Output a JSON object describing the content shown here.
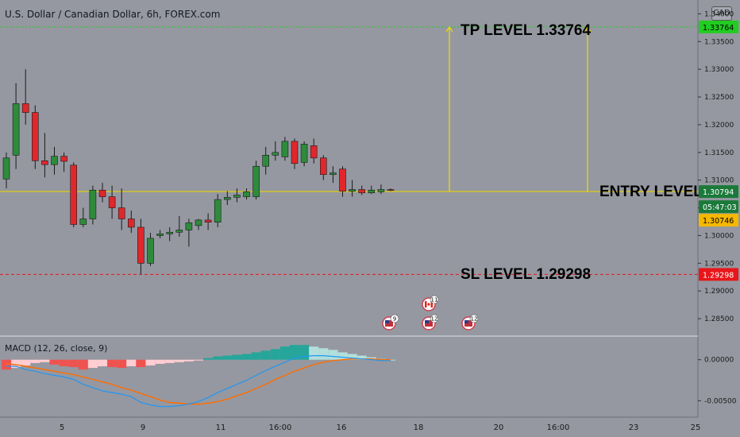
{
  "chart_data": {
    "type": "candlestick",
    "title": "U.S. Dollar / Canadian Dollar, 6h, FOREX.com",
    "currency_badge": "CAD",
    "price_axis": {
      "range": [
        1.282,
        1.3425
      ],
      "ticks": [
        "1.34000",
        "1.33500",
        "1.33000",
        "1.32500",
        "1.32000",
        "1.31500",
        "1.31000",
        "1.30500",
        "1.30000",
        "1.29500",
        "1.29000",
        "1.28500"
      ]
    },
    "time_axis": {
      "labels": [
        "5",
        "9",
        "11",
        "16:00",
        "16",
        "18",
        "20",
        "16:00",
        "23",
        "25"
      ]
    },
    "candles": [
      {
        "o": 1.3102,
        "h": 1.315,
        "l": 1.3085,
        "c": 1.314
      },
      {
        "o": 1.3145,
        "h": 1.3275,
        "l": 1.312,
        "c": 1.3238
      },
      {
        "o": 1.3238,
        "h": 1.33,
        "l": 1.32,
        "c": 1.3222
      },
      {
        "o": 1.3222,
        "h": 1.3235,
        "l": 1.312,
        "c": 1.3135
      },
      {
        "o": 1.3135,
        "h": 1.3185,
        "l": 1.3105,
        "c": 1.3128
      },
      {
        "o": 1.3128,
        "h": 1.316,
        "l": 1.311,
        "c": 1.3143
      },
      {
        "o": 1.3143,
        "h": 1.315,
        "l": 1.3115,
        "c": 1.3134
      },
      {
        "o": 1.3127,
        "h": 1.3132,
        "l": 1.3015,
        "c": 1.302
      },
      {
        "o": 1.302,
        "h": 1.305,
        "l": 1.3015,
        "c": 1.303
      },
      {
        "o": 1.303,
        "h": 1.309,
        "l": 1.302,
        "c": 1.3082
      },
      {
        "o": 1.3082,
        "h": 1.3095,
        "l": 1.306,
        "c": 1.307
      },
      {
        "o": 1.307,
        "h": 1.309,
        "l": 1.303,
        "c": 1.305
      },
      {
        "o": 1.305,
        "h": 1.3085,
        "l": 1.301,
        "c": 1.303
      },
      {
        "o": 1.303,
        "h": 1.3045,
        "l": 1.3005,
        "c": 1.3015
      },
      {
        "o": 1.3015,
        "h": 1.303,
        "l": 1.293,
        "c": 1.295
      },
      {
        "o": 1.295,
        "h": 1.3005,
        "l": 1.2945,
        "c": 1.2995
      },
      {
        "o": 1.3,
        "h": 1.301,
        "l": 1.2995,
        "c": 1.3003
      },
      {
        "o": 1.3003,
        "h": 1.3015,
        "l": 1.299,
        "c": 1.3006
      },
      {
        "o": 1.3006,
        "h": 1.3035,
        "l": 1.2998,
        "c": 1.301
      },
      {
        "o": 1.301,
        "h": 1.303,
        "l": 1.298,
        "c": 1.3023
      },
      {
        "o": 1.3018,
        "h": 1.303,
        "l": 1.301,
        "c": 1.3028
      },
      {
        "o": 1.3028,
        "h": 1.304,
        "l": 1.301,
        "c": 1.3024
      },
      {
        "o": 1.3024,
        "h": 1.3075,
        "l": 1.3015,
        "c": 1.3065
      },
      {
        "o": 1.3065,
        "h": 1.308,
        "l": 1.3055,
        "c": 1.3069
      },
      {
        "o": 1.3069,
        "h": 1.3085,
        "l": 1.306,
        "c": 1.3073
      },
      {
        "o": 1.307,
        "h": 1.3085,
        "l": 1.3065,
        "c": 1.3079
      },
      {
        "o": 1.307,
        "h": 1.3135,
        "l": 1.3065,
        "c": 1.3125
      },
      {
        "o": 1.3125,
        "h": 1.316,
        "l": 1.311,
        "c": 1.3145
      },
      {
        "o": 1.3145,
        "h": 1.317,
        "l": 1.3135,
        "c": 1.315
      },
      {
        "o": 1.3142,
        "h": 1.3178,
        "l": 1.3135,
        "c": 1.317
      },
      {
        "o": 1.317,
        "h": 1.3175,
        "l": 1.312,
        "c": 1.313
      },
      {
        "o": 1.3132,
        "h": 1.317,
        "l": 1.3125,
        "c": 1.3165
      },
      {
        "o": 1.3162,
        "h": 1.3175,
        "l": 1.313,
        "c": 1.314
      },
      {
        "o": 1.314,
        "h": 1.3145,
        "l": 1.31,
        "c": 1.311
      },
      {
        "o": 1.311,
        "h": 1.3125,
        "l": 1.3095,
        "c": 1.3113
      },
      {
        "o": 1.312,
        "h": 1.3125,
        "l": 1.307,
        "c": 1.308
      },
      {
        "o": 1.308,
        "h": 1.31,
        "l": 1.307,
        "c": 1.3083
      },
      {
        "o": 1.3083,
        "h": 1.309,
        "l": 1.3073,
        "c": 1.3077
      },
      {
        "o": 1.3077,
        "h": 1.309,
        "l": 1.3075,
        "c": 1.3082
      },
      {
        "o": 1.3079,
        "h": 1.3092,
        "l": 1.3075,
        "c": 1.3083
      },
      {
        "o": 1.3083,
        "h": 1.3085,
        "l": 1.308,
        "c": 1.3082
      }
    ],
    "levels": [
      {
        "name": "tp",
        "value": 1.33764,
        "label": "1.33764",
        "color": "#22cc22",
        "style": "dotted"
      },
      {
        "name": "current",
        "value": 1.30794,
        "label": "1.30794",
        "color": "#e6d200",
        "style": "solid"
      },
      {
        "name": "sl",
        "value": 1.29298,
        "label": "1.29298",
        "color": "#e8161a",
        "style": "dashed"
      }
    ],
    "price_tags": [
      {
        "value": 1.33764,
        "label": "1.33764",
        "bg": "#22cc22",
        "fg": "#000000"
      },
      {
        "value": 1.30794,
        "label": "1.30794",
        "bg": "#1b7a3a",
        "fg": "#ffffff"
      },
      {
        "value": 1.30565,
        "label": "05:47:03",
        "bg": "#1b7a3a",
        "fg": "#ffffff"
      },
      {
        "value": 1.30746,
        "label": "1.30746",
        "bg": "#f5b800",
        "fg": "#000000"
      },
      {
        "value": 1.29298,
        "label": "1.29298",
        "bg": "#e8161a",
        "fg": "#ffffff"
      }
    ],
    "annotations": [
      {
        "text": "TP LEVEL 1.33764"
      },
      {
        "text": "ENTRY LEVEL"
      },
      {
        "text": "SL LEVEL 1.29298"
      }
    ],
    "events": [
      {
        "label": "9",
        "flag": "US"
      },
      {
        "label": "11",
        "flag": "CA"
      },
      {
        "label": "12",
        "flag": "US"
      },
      {
        "label": "12",
        "flag": "US"
      }
    ],
    "macd": {
      "title": "MACD (12, 26, close, 9)",
      "range": [
        -0.0068,
        0.0022
      ],
      "ticks": [
        "0.00000",
        "-0.00500"
      ],
      "histogram": [
        -0.0012,
        -0.001,
        -0.0007,
        -0.0004,
        -0.0003,
        -0.0006,
        -0.0008,
        -0.0009,
        -0.0012,
        -0.001,
        -0.0008,
        -0.0009,
        -0.001,
        -0.0008,
        -0.0009,
        -0.0007,
        -0.0005,
        -0.0004,
        -0.0003,
        -0.0002,
        -0.0001,
        0.0002,
        0.0004,
        0.0005,
        0.0006,
        0.0007,
        0.0009,
        0.0011,
        0.0013,
        0.0016,
        0.0018,
        0.0018,
        0.0016,
        0.0014,
        0.0012,
        0.0009,
        0.0007,
        0.0005,
        0.0003,
        0.0001,
        0.0
      ],
      "macd_line": [
        -0.0008,
        -0.0008,
        -0.0012,
        -0.0014,
        -0.0017,
        -0.0019,
        -0.0021,
        -0.0024,
        -0.003,
        -0.0034,
        -0.0038,
        -0.004,
        -0.0042,
        -0.0045,
        -0.0052,
        -0.0055,
        -0.0057,
        -0.0057,
        -0.0056,
        -0.0054,
        -0.0051,
        -0.0046,
        -0.004,
        -0.0035,
        -0.003,
        -0.0025,
        -0.0019,
        -0.0013,
        -0.0008,
        -0.0003,
        0.0002,
        0.0004,
        0.0005,
        0.0005,
        0.0004,
        0.0003,
        0.0002,
        0.0001,
        0.0,
        -0.0001,
        -0.0001
      ],
      "signal_line": [
        -0.0005,
        -0.0006,
        -0.0008,
        -0.001,
        -0.0012,
        -0.0014,
        -0.0016,
        -0.0018,
        -0.0021,
        -0.0024,
        -0.0027,
        -0.003,
        -0.0034,
        -0.0037,
        -0.0041,
        -0.0045,
        -0.0049,
        -0.0052,
        -0.0053,
        -0.0054,
        -0.0054,
        -0.0053,
        -0.0051,
        -0.0048,
        -0.0044,
        -0.004,
        -0.0035,
        -0.003,
        -0.0024,
        -0.0019,
        -0.0014,
        -0.001,
        -0.0006,
        -0.0003,
        -0.0001,
        0.0,
        0.0001,
        0.0001,
        0.0001,
        0.0,
        0.0
      ],
      "colors": {
        "macd": "#2196f3",
        "signal": "#ff6d00",
        "hist_pos_strong": "#26a69a",
        "hist_pos_weak": "#b2dfdb",
        "hist_neg_strong": "#ef5350",
        "hist_neg_weak": "#ffcdd2"
      }
    },
    "colors": {
      "up": "#2e8b3c",
      "down": "#e0272c",
      "wick": "#1a1a1a",
      "background": "#9598a1",
      "arrow": "#f0e000"
    }
  }
}
